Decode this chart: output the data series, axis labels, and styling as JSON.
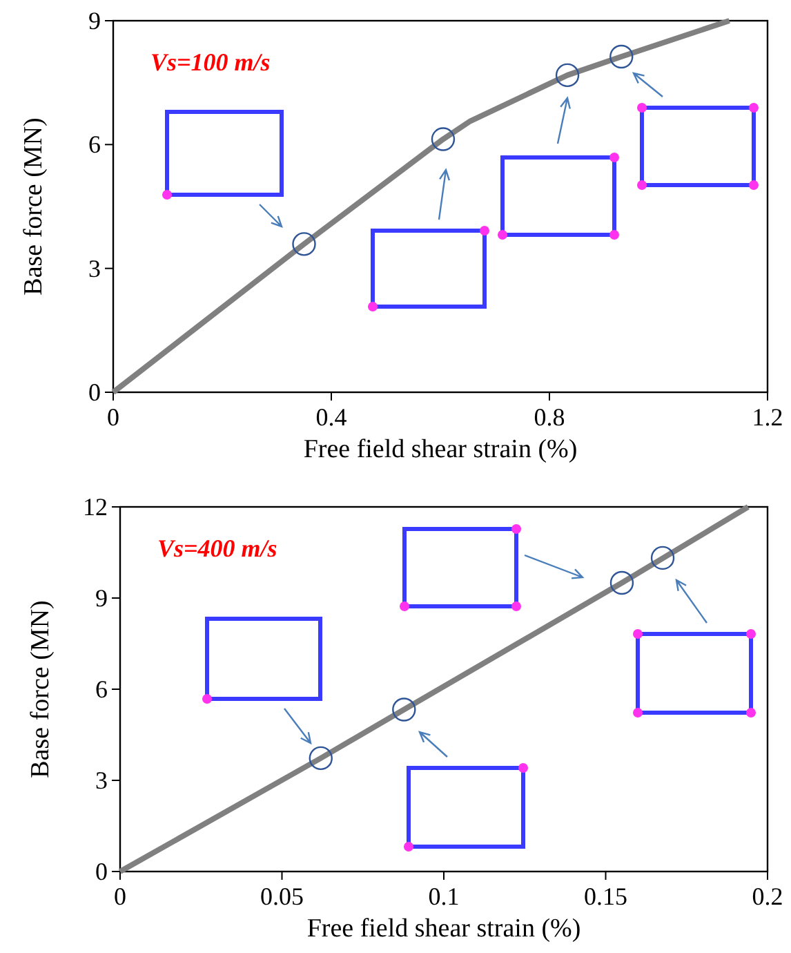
{
  "chart_data": [
    {
      "type": "line",
      "xlabel": "Free field shear strain (%)",
      "ylabel": "Base force (MN)",
      "xlim": [
        0,
        1.2
      ],
      "xticks": [
        0,
        0.4,
        0.8,
        1.2
      ],
      "ylim": [
        0,
        9
      ],
      "yticks": [
        0,
        3,
        6,
        9
      ],
      "grid": false,
      "annotations": [
        "Vs=100 m/s"
      ],
      "series": [
        {
          "color": "#808080",
          "x": [
            0,
            0.35,
            0.605,
            0.655,
            0.833,
            0.932,
            1.13
          ],
          "values": [
            0,
            3.59,
            6.13,
            6.57,
            7.68,
            8.13,
            9
          ]
        },
        {
          "type": "scatter",
          "marker": "circle",
          "color": "#2f5597",
          "x": [
            0.35,
            0.605,
            0.833,
            0.932
          ],
          "values": [
            3.59,
            6.13,
            7.68,
            8.13
          ]
        }
      ]
    },
    {
      "type": "line",
      "xlabel": "Free field shear strain (%)",
      "ylabel": "Base force (MN)",
      "xlim": [
        0,
        0.2
      ],
      "xticks": [
        0,
        0.05,
        0.1,
        0.15,
        0.2
      ],
      "ylim": [
        0,
        12
      ],
      "yticks": [
        0,
        3,
        6,
        9,
        12
      ],
      "grid": false,
      "annotations": [
        "Vs=400 m/s"
      ],
      "series": [
        {
          "color": "#808080",
          "x": [
            0,
            0.062,
            0.0877,
            0.155,
            0.194
          ],
          "values": [
            0,
            3.73,
            5.33,
            9.5,
            12
          ]
        },
        {
          "type": "scatter",
          "marker": "circle",
          "color": "#2f5597",
          "x": [
            0.062,
            0.0877,
            0.155,
            0.1676
          ],
          "values": [
            3.73,
            5.33,
            9.5,
            10.32
          ]
        }
      ]
    }
  ]
}
